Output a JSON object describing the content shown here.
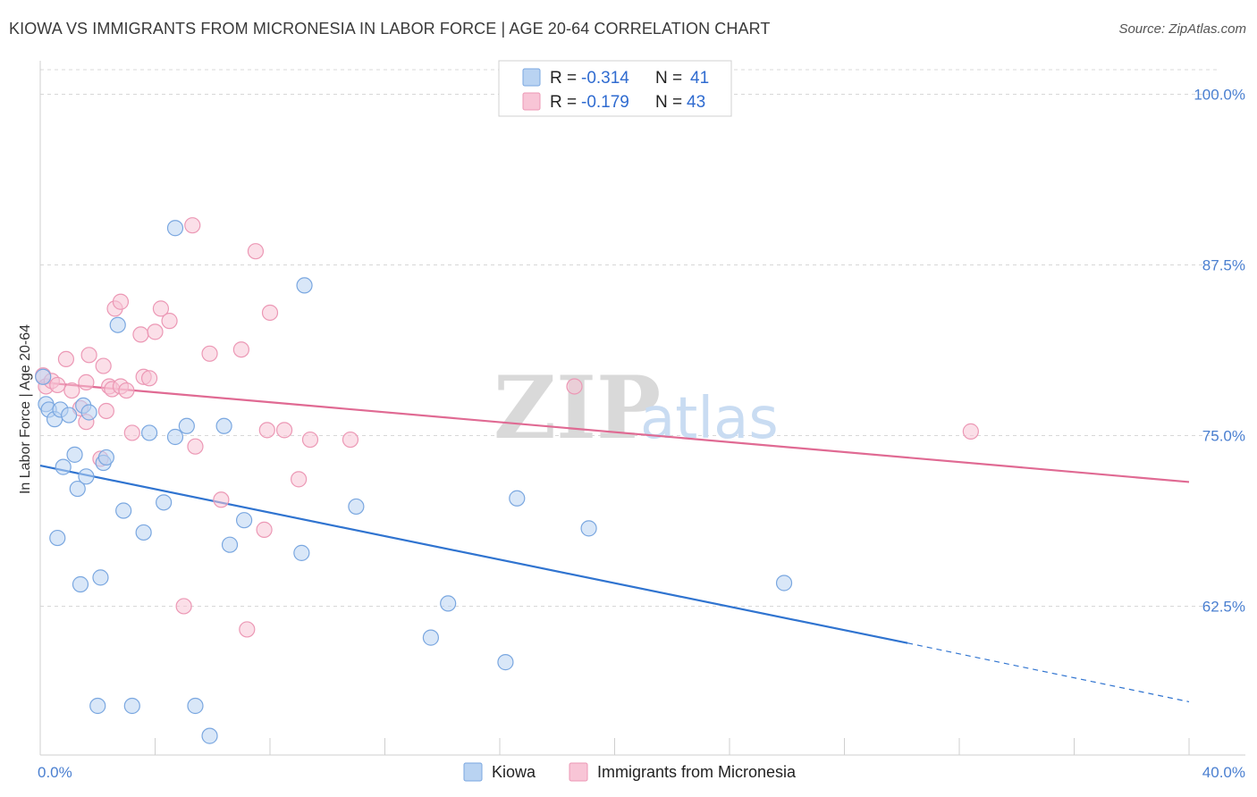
{
  "title": "KIOWA VS IMMIGRANTS FROM MICRONESIA IN LABOR FORCE | AGE 20-64 CORRELATION CHART",
  "source": "Source: ZipAtlas.com",
  "watermark": {
    "zip": "ZIP",
    "atlas": "atlas"
  },
  "colors": {
    "kiowa_fill": "#b9d3f2",
    "kiowa_stroke": "#7aa7e0",
    "kiowa_line": "#3074d0",
    "micro_fill": "#f8c5d6",
    "micro_stroke": "#ec98b5",
    "micro_line": "#e06a93",
    "tick_text": "#4a7fd0",
    "grid": "#d8d8d8"
  },
  "legend": {
    "rows": [
      {
        "series": "kiowa",
        "r_label": "R =",
        "r_value": "-0.314",
        "n_label": "N =",
        "n_value": "41"
      },
      {
        "series": "micro",
        "r_label": "R =",
        "r_value": "-0.179",
        "n_label": "N =",
        "n_value": "43"
      }
    ]
  },
  "bottom_legend": [
    "Kiowa",
    "Immigrants from Micronesia"
  ],
  "chart_data": {
    "type": "scatter",
    "title": "KIOWA VS IMMIGRANTS FROM MICRONESIA IN LABOR FORCE | AGE 20-64 CORRELATION CHART",
    "xlabel": "",
    "ylabel": "In Labor Force | Age 20-64",
    "xlim": [
      0,
      40
    ],
    "ylim": [
      51.6,
      101.8
    ],
    "x_tick_labels": [
      "0.0%",
      "40.0%"
    ],
    "y_ticks": [
      62.5,
      75.0,
      87.5,
      100.0
    ],
    "y_tick_labels": [
      "62.5%",
      "75.0%",
      "87.5%",
      "100.0%"
    ],
    "grid": true,
    "series": [
      {
        "name": "Kiowa",
        "key": "kiowa",
        "r": -0.314,
        "n": 41,
        "points": [
          [
            0.1,
            79.3
          ],
          [
            0.2,
            77.3
          ],
          [
            0.3,
            76.9
          ],
          [
            0.5,
            76.2
          ],
          [
            0.6,
            67.5
          ],
          [
            0.7,
            76.9
          ],
          [
            0.8,
            72.7
          ],
          [
            1.0,
            76.5
          ],
          [
            1.2,
            73.6
          ],
          [
            1.3,
            71.1
          ],
          [
            1.4,
            64.1
          ],
          [
            1.5,
            77.2
          ],
          [
            1.6,
            72.0
          ],
          [
            1.7,
            76.7
          ],
          [
            2.0,
            55.2
          ],
          [
            2.1,
            64.6
          ],
          [
            2.2,
            73.0
          ],
          [
            2.3,
            73.4
          ],
          [
            2.7,
            83.1
          ],
          [
            2.9,
            69.5
          ],
          [
            3.2,
            55.2
          ],
          [
            3.6,
            67.9
          ],
          [
            3.8,
            75.2
          ],
          [
            4.3,
            70.1
          ],
          [
            4.7,
            74.9
          ],
          [
            4.7,
            90.2
          ],
          [
            5.1,
            75.7
          ],
          [
            5.4,
            55.2
          ],
          [
            5.9,
            53.0
          ],
          [
            6.4,
            75.7
          ],
          [
            6.6,
            67.0
          ],
          [
            7.1,
            68.8
          ],
          [
            9.1,
            66.4
          ],
          [
            9.2,
            86.0
          ],
          [
            11.0,
            69.8
          ],
          [
            13.6,
            60.2
          ],
          [
            14.2,
            62.7
          ],
          [
            16.2,
            58.4
          ],
          [
            16.6,
            70.4
          ],
          [
            19.1,
            68.2
          ],
          [
            25.9,
            64.2
          ]
        ]
      },
      {
        "name": "Immigrants from Micronesia",
        "key": "micro",
        "r": -0.179,
        "n": 43,
        "points": [
          [
            0.1,
            79.4
          ],
          [
            0.2,
            78.6
          ],
          [
            0.4,
            79.0
          ],
          [
            0.6,
            78.7
          ],
          [
            0.9,
            80.6
          ],
          [
            1.1,
            78.3
          ],
          [
            1.4,
            77.0
          ],
          [
            1.6,
            78.9
          ],
          [
            1.6,
            76.0
          ],
          [
            1.7,
            80.9
          ],
          [
            2.1,
            73.3
          ],
          [
            2.2,
            80.1
          ],
          [
            2.3,
            76.8
          ],
          [
            2.4,
            78.6
          ],
          [
            2.5,
            78.4
          ],
          [
            2.6,
            84.3
          ],
          [
            2.8,
            78.6
          ],
          [
            2.8,
            84.8
          ],
          [
            3.0,
            78.3
          ],
          [
            3.2,
            75.2
          ],
          [
            3.5,
            82.4
          ],
          [
            3.6,
            79.3
          ],
          [
            3.8,
            79.2
          ],
          [
            4.0,
            82.6
          ],
          [
            4.2,
            84.3
          ],
          [
            4.5,
            83.4
          ],
          [
            5.0,
            62.5
          ],
          [
            5.3,
            90.4
          ],
          [
            5.4,
            74.2
          ],
          [
            5.9,
            81.0
          ],
          [
            6.3,
            70.3
          ],
          [
            7.0,
            81.3
          ],
          [
            7.2,
            60.8
          ],
          [
            7.5,
            88.5
          ],
          [
            7.8,
            68.1
          ],
          [
            7.9,
            75.4
          ],
          [
            8.0,
            84.0
          ],
          [
            8.5,
            75.4
          ],
          [
            9.0,
            71.8
          ],
          [
            9.4,
            74.7
          ],
          [
            10.8,
            74.7
          ],
          [
            18.6,
            78.6
          ],
          [
            32.4,
            75.3
          ]
        ]
      }
    ],
    "trendlines": [
      {
        "series": "kiowa",
        "solid": [
          [
            0.0,
            72.8
          ],
          [
            30.2,
            59.8
          ]
        ],
        "dashed": [
          [
            30.2,
            59.8
          ],
          [
            40.0,
            55.5
          ]
        ]
      },
      {
        "series": "micro",
        "solid": [
          [
            0.0,
            78.9
          ],
          [
            40.0,
            71.6
          ]
        ]
      }
    ]
  }
}
